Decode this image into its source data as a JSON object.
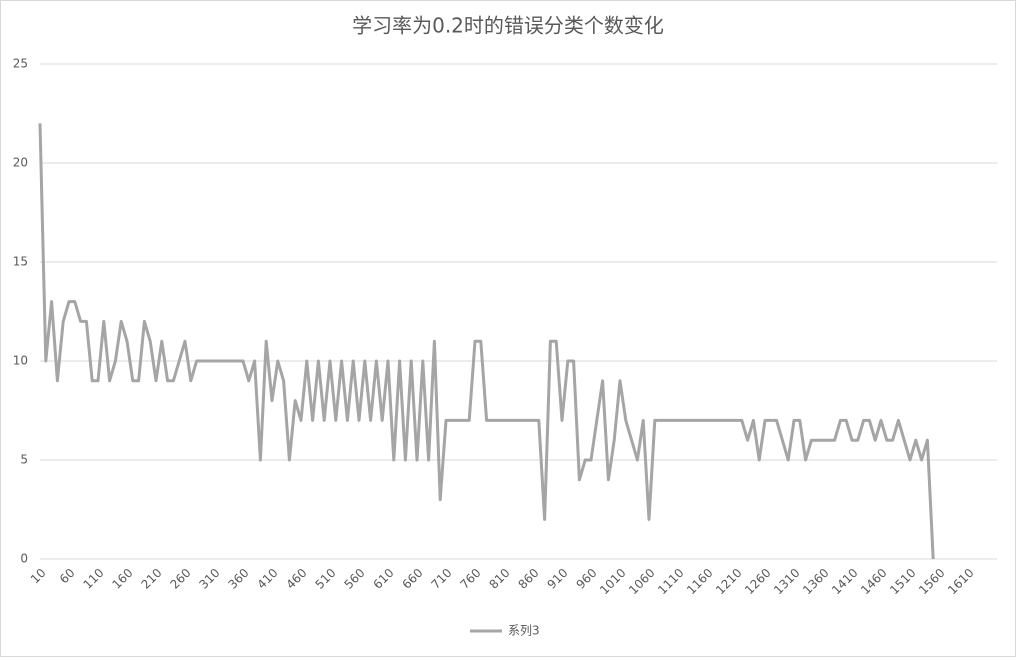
{
  "chart_data": {
    "type": "line",
    "title": "学习率为0.2时的错误分类个数变化",
    "categories": [
      10,
      null,
      null,
      null,
      null,
      60,
      null,
      null,
      null,
      null,
      110,
      null,
      null,
      null,
      null,
      160,
      null,
      null,
      null,
      null,
      210,
      null,
      null,
      null,
      null,
      260,
      null,
      null,
      null,
      null,
      310,
      null,
      null,
      null,
      null,
      360,
      null,
      null,
      null,
      null,
      410,
      null,
      null,
      null,
      null,
      460,
      null,
      null,
      null,
      null,
      510,
      null,
      null,
      null,
      null,
      560,
      null,
      null,
      null,
      null,
      610,
      null,
      null,
      null,
      null,
      660,
      null,
      null,
      null,
      null,
      710,
      null,
      null,
      null,
      null,
      760,
      null,
      null,
      null,
      null,
      810,
      null,
      null,
      null,
      null,
      860,
      null,
      null,
      null,
      null,
      910,
      null,
      null,
      null,
      null,
      960,
      null,
      null,
      null,
      null,
      1010,
      null,
      null,
      null,
      null,
      1060,
      null,
      null,
      null,
      null,
      1110,
      null,
      null,
      null,
      null,
      1160,
      null,
      null,
      null,
      null,
      1210,
      null,
      null,
      null,
      null,
      1260,
      null,
      null,
      null,
      null,
      1310,
      null,
      null,
      null,
      null,
      1360,
      null,
      null,
      null,
      null,
      1410,
      null,
      null,
      null,
      null,
      1460,
      null,
      null,
      null,
      null,
      1510,
      null,
      null,
      null,
      null,
      1560,
      null,
      null,
      null,
      null,
      1610,
      null,
      null,
      null,
      null,
      null
    ],
    "series": [
      {
        "name": "系列3",
        "color": "#a5a5a5",
        "values": [
          22,
          10,
          13,
          9,
          12,
          13,
          13,
          12,
          12,
          9,
          9,
          12,
          9,
          10,
          12,
          11,
          9,
          9,
          12,
          11,
          9,
          11,
          9,
          9,
          10,
          11,
          9,
          10,
          10,
          10,
          10,
          10,
          10,
          10,
          10,
          10,
          9,
          10,
          5,
          11,
          8,
          10,
          9,
          5,
          8,
          7,
          10,
          7,
          10,
          7,
          10,
          7,
          10,
          7,
          10,
          7,
          10,
          7,
          10,
          7,
          10,
          5,
          10,
          5,
          10,
          5,
          10,
          5,
          11,
          3,
          7,
          7,
          7,
          7,
          7,
          11,
          11,
          7,
          7,
          7,
          7,
          7,
          7,
          7,
          7,
          7,
          7,
          2,
          11,
          11,
          7,
          10,
          10,
          4,
          5,
          5,
          7,
          9,
          4,
          6,
          9,
          7,
          6,
          5,
          7,
          2,
          7,
          7,
          7,
          7,
          7,
          7,
          7,
          7,
          7,
          7,
          7,
          7,
          7,
          7,
          7,
          7,
          6,
          7,
          5,
          7,
          7,
          7,
          6,
          5,
          7,
          7,
          5,
          6,
          6,
          6,
          6,
          6,
          7,
          7,
          6,
          6,
          7,
          7,
          6,
          7,
          6,
          6,
          7,
          6,
          5,
          6,
          5,
          6,
          0,
          null,
          null,
          null,
          null,
          null,
          null,
          null,
          null,
          null,
          null,
          null
        ]
      }
    ],
    "ylim": [
      0,
      25
    ],
    "yticks": [
      0,
      5,
      10,
      15,
      20,
      25
    ],
    "grid": true,
    "legend": "bottom"
  }
}
